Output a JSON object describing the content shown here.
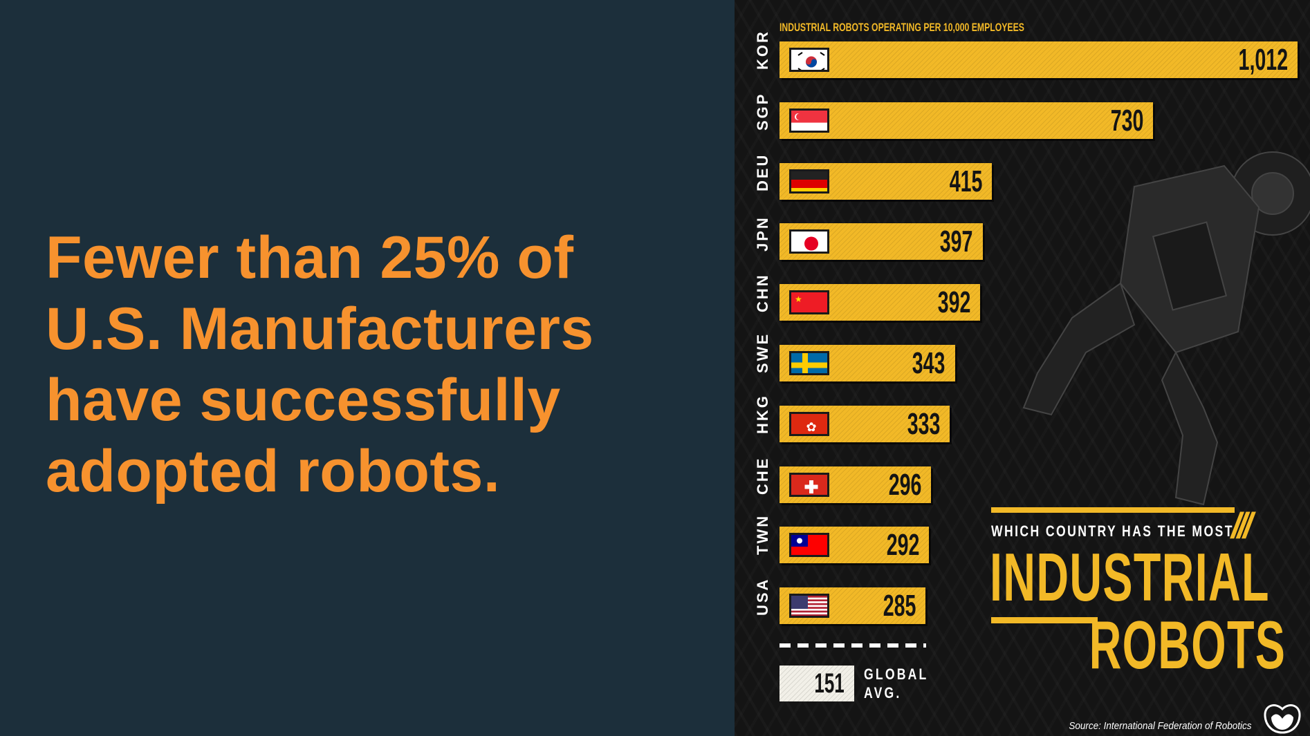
{
  "headline": [
    "Fewer than 25% of",
    "U.S. Manufacturers",
    "have successfully",
    "adopted robots."
  ],
  "colors": {
    "accent": "#f7922e",
    "bar": "#f2b927",
    "panel": "#1c2f3b"
  },
  "chart_data": {
    "type": "bar",
    "orientation": "horizontal",
    "title": "Which Country Has the Most Industrial Robots",
    "subtitle": "INDUSTRIAL ROBOTS OPERATING PER 10,000 EMPLOYEES",
    "categories": [
      "KOR",
      "SGP",
      "DEU",
      "JPN",
      "CHN",
      "SWE",
      "HKG",
      "CHE",
      "TWN",
      "USA"
    ],
    "values": [
      1012,
      730,
      415,
      397,
      392,
      343,
      333,
      296,
      292,
      285
    ],
    "labels": [
      "1,012",
      "730",
      "415",
      "397",
      "392",
      "343",
      "333",
      "296",
      "292",
      "285"
    ],
    "reference": {
      "label": "GLOBAL AVG.",
      "value": 151,
      "label_text": "151"
    },
    "xlim": [
      0,
      1012
    ]
  },
  "title": {
    "kicker": "WHICH COUNTRY HAS THE MOST",
    "line1": "INDUSTRIAL",
    "line2": "ROBOTS"
  },
  "global_avg": {
    "value": "151",
    "label1": "GLOBAL",
    "label2": "AVG."
  },
  "source": "Source: International Federation of Robotics"
}
